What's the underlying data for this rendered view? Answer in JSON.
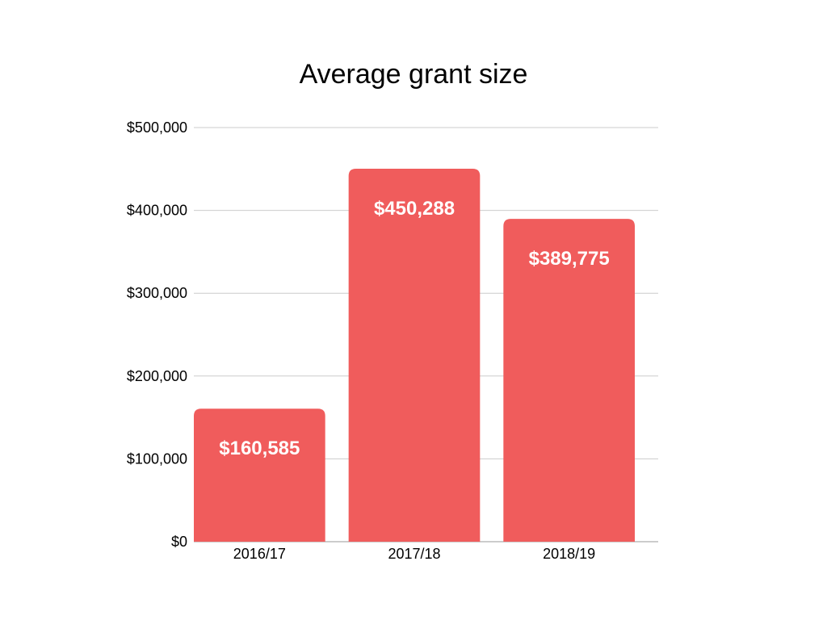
{
  "chart_data": {
    "type": "bar",
    "title": "Average grant size",
    "xlabel": "",
    "ylabel": "",
    "categories": [
      "2016/17",
      "2017/18",
      "2018/19"
    ],
    "values": [
      160585,
      450288,
      389775
    ],
    "data_labels": [
      "$160,585",
      "$450,288",
      "$389,775"
    ],
    "ylim": [
      0,
      500000
    ],
    "yticks": [
      0,
      100000,
      200000,
      300000,
      400000,
      500000
    ],
    "ytick_labels": [
      "$0",
      "$100,000",
      "$200,000",
      "$300,000",
      "$400,000",
      "$500,000"
    ],
    "grid": true,
    "legend": "none",
    "bar_color": "#f05c5c",
    "data_label_color": "#ffffff",
    "grid_color": "#cccccc"
  }
}
